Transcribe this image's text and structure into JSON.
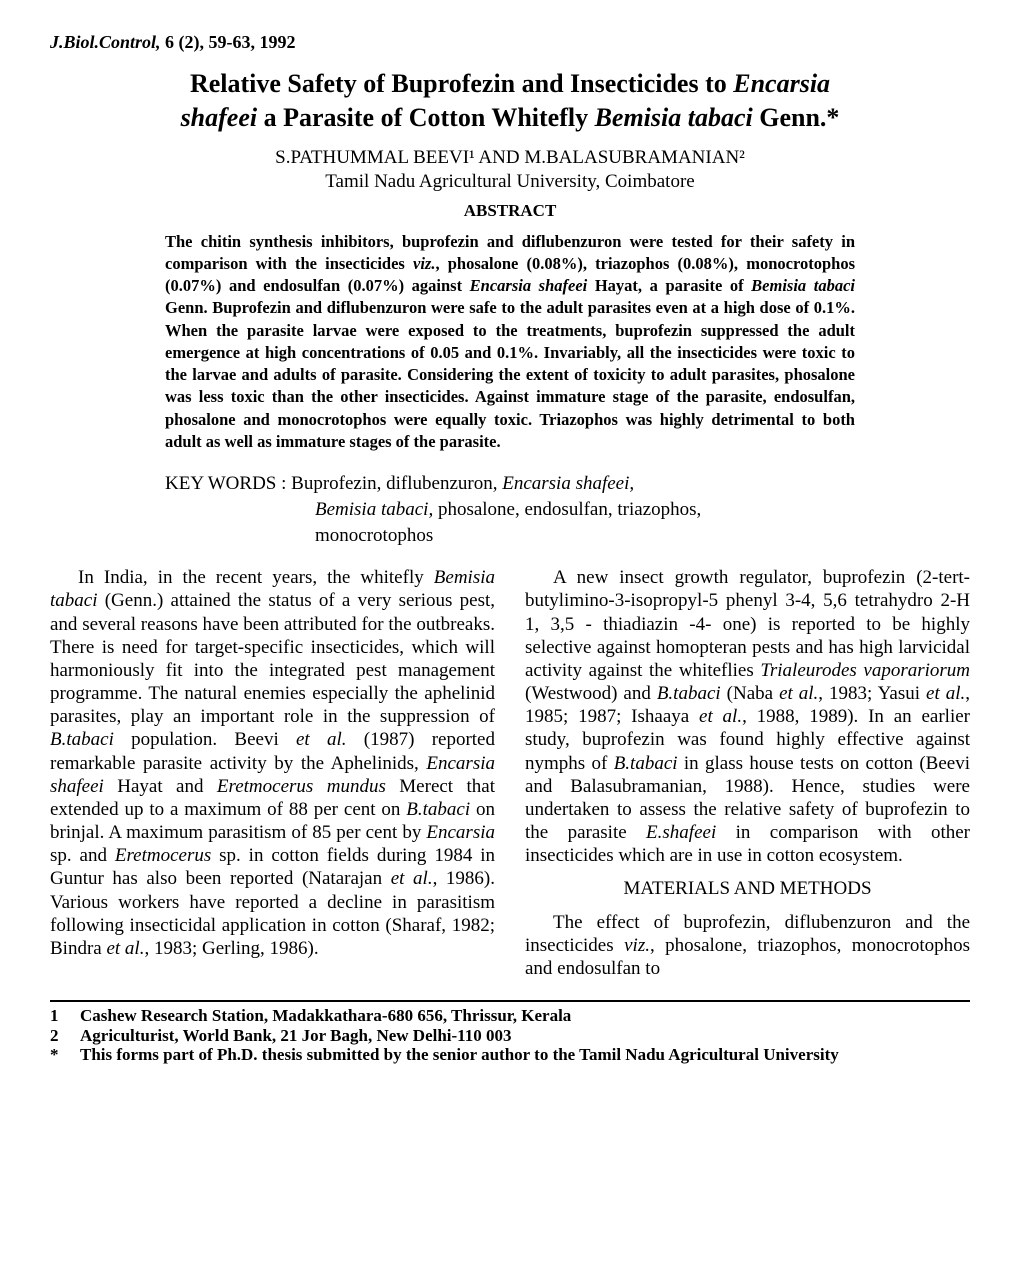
{
  "journal": {
    "name": "J.Biol.Control,",
    "volume": "6 (2), 59-63, 1992"
  },
  "title": {
    "line1_a": "Relative Safety of Buprofezin and Insecticides to ",
    "line1_b": "Encarsia",
    "line2_a": "shafeei",
    "line2_b": " a Parasite of Cotton Whitefly ",
    "line2_c": "Bemisia tabaci",
    "line2_d": " Genn.*"
  },
  "authors": "S.PATHUMMAL BEEVI¹ AND M.BALASUBRAMANIAN²",
  "affiliation": "Tamil Nadu Agricultural University, Coimbatore",
  "abstract_heading": "ABSTRACT",
  "abstract_parts": {
    "p1": "The chitin synthesis inhibitors, buprofezin and diflubenzuron were tested for their safety in comparison with the insecticides ",
    "p2": "viz.",
    "p3": ", phosalone (0.08%), triazophos (0.08%), monocrotophos (0.07%) and endosulfan (0.07%) against ",
    "p4": "Encarsia shafeei",
    "p5": " Hayat, a parasite of ",
    "p6": "Bemisia tabaci",
    "p7": " Genn. Buprofezin and diflubenzuron were safe to the adult parasites even at a high dose of 0.1%. When the parasite larvae were exposed to the treatments, buprofezin suppressed the adult emergence at high concentrations of 0.05 and 0.1%. Invariably, all the insecticides were toxic to the larvae and adults of parasite. Considering the extent of toxicity to adult parasites, phosalone was less toxic than the other insecticides. Against immature stage of the parasite, endosulfan, phosalone and monocrotophos were equally toxic. Triazophos was highly detrimental to both adult as well as immature stages of the parasite."
  },
  "keywords": {
    "label": "KEY WORDS : ",
    "line1_a": "Buprofezin, diflubenzuron, ",
    "line1_b": "Encarsia shafeei,",
    "line2_a": "Bemisia tabaci,",
    "line2_b": " phosalone, endosulfan, triazophos,",
    "line3": "monocrotophos"
  },
  "col1": {
    "p1a": "In India, in the recent years, the whitefly ",
    "p1b": "Bemisia tabaci",
    "p1c": " (Genn.) attained the status of a very serious pest, and several reasons have been attributed for the outbreaks. There is need for target-specific insecticides, which will harmoniously fit into the integrated pest management programme. The natural enemies especially the aphelinid parasites, play an important role in the suppression of ",
    "p1d": "B.tabaci",
    "p1e": " population. Beevi ",
    "p1f": "et al.",
    "p1g": " (1987) reported remarkable parasite activity by the Aphelinids, ",
    "p1h": "Encarsia shafeei",
    "p1i": " Hayat and ",
    "p1j": "Eretmocerus mundus",
    "p1k": " Merect that extended up to a maximum of 88 per cent on ",
    "p1l": "B.tabaci",
    "p1m": " on brinjal. A maximum parasitism of 85 per cent by ",
    "p1n": "Encarsia",
    "p1o": " sp. and ",
    "p1p": "Eretmocerus",
    "p1q": " sp. in cotton fields during 1984 in Guntur has also been reported (Natarajan ",
    "p1r": "et al.",
    "p1s": ", 1986). Various workers have reported a decline in parasitism following insecticidal application in cotton (Sharaf, 1982; Bindra ",
    "p1t": "et al.",
    "p1u": ", 1983; Gerling, 1986)."
  },
  "col2": {
    "p1a": "A new insect growth regulator, buprofezin (2-tert-butylimino-3-isopropyl-5 phenyl 3-4, 5,6 tetrahydro 2-H 1, 3,5 - thiadiazin -4- one) is reported to be highly selective against homopteran pests and has high larvicidal activity against the whiteflies ",
    "p1b": "Trialeurodes vaporariorum",
    "p1c": " (Westwood) and ",
    "p1d": "B.tabaci",
    "p1e": " (Naba ",
    "p1f": "et al.",
    "p1g": ", 1983; Yasui ",
    "p1h": "et al.",
    "p1i": ", 1985; 1987; Ishaaya ",
    "p1j": "et al.",
    "p1k": ", 1988, 1989). In an earlier study, buprofezin was found highly effective against nymphs of ",
    "p1l": "B.tabaci",
    "p1m": " in glass house tests on cotton (Beevi and Balasubramanian, 1988). Hence, studies were undertaken to assess the relative safety of buprofezin to the parasite ",
    "p1n": "E.shafeei",
    "p1o": " in comparison with other insecticides which are in use in cotton ecosystem.",
    "section": "MATERIALS AND METHODS",
    "p2a": "The effect of buprofezin, diflubenzuron and the insecticides ",
    "p2b": "viz.",
    "p2c": ", phosalone, triazophos, monocrotophos and endosulfan to"
  },
  "footnotes": {
    "n1": "1",
    "t1": "Cashew Research Station, Madakkathara-680 656, Thrissur, Kerala",
    "n2": "2",
    "t2": "Agriculturist, World Bank, 21 Jor Bagh, New Delhi-110 003",
    "n3": "*",
    "t3": "This forms part of Ph.D. thesis submitted by the senior author to the Tamil Nadu Agricultural University"
  }
}
